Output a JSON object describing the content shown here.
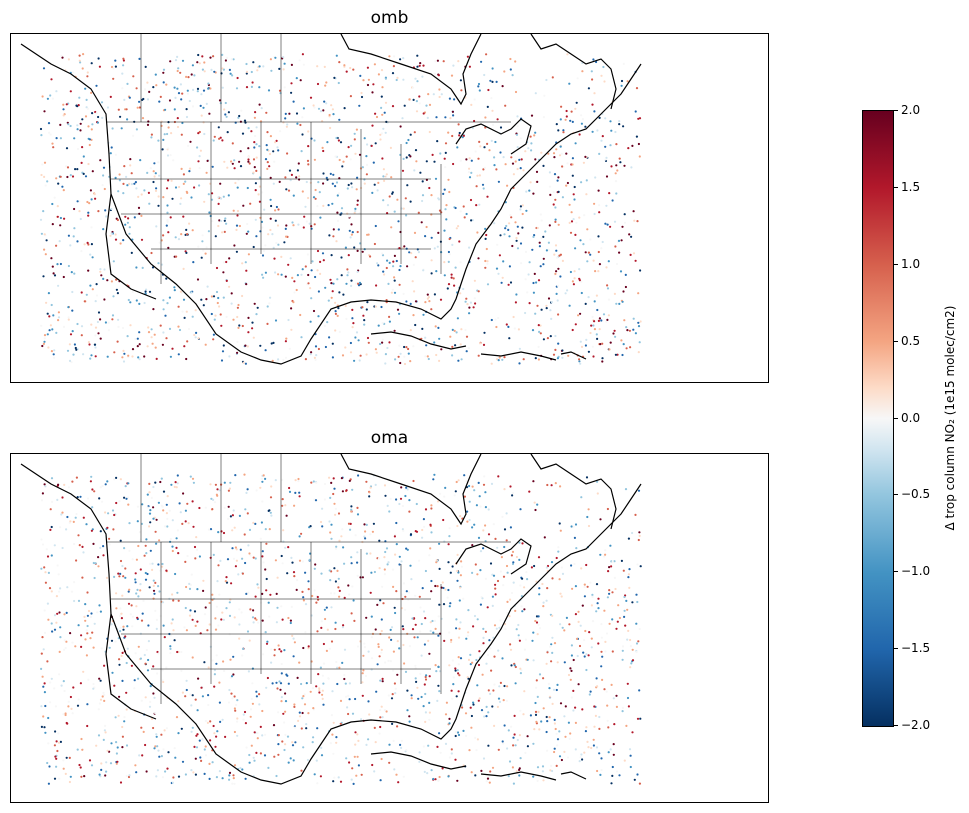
{
  "panels": [
    {
      "title": "omb"
    },
    {
      "title": "oma"
    }
  ],
  "colorbar": {
    "label": "Δ trop column NO₂ (1e15 molec/cm2)",
    "ticks": [
      "2.0",
      "1.5",
      "1.0",
      "0.5",
      "0.0",
      "−0.5",
      "−1.0",
      "−1.5",
      "−2.0"
    ],
    "colormap": "RdBu_r",
    "range": [
      -2.0,
      2.0
    ]
  }
}
